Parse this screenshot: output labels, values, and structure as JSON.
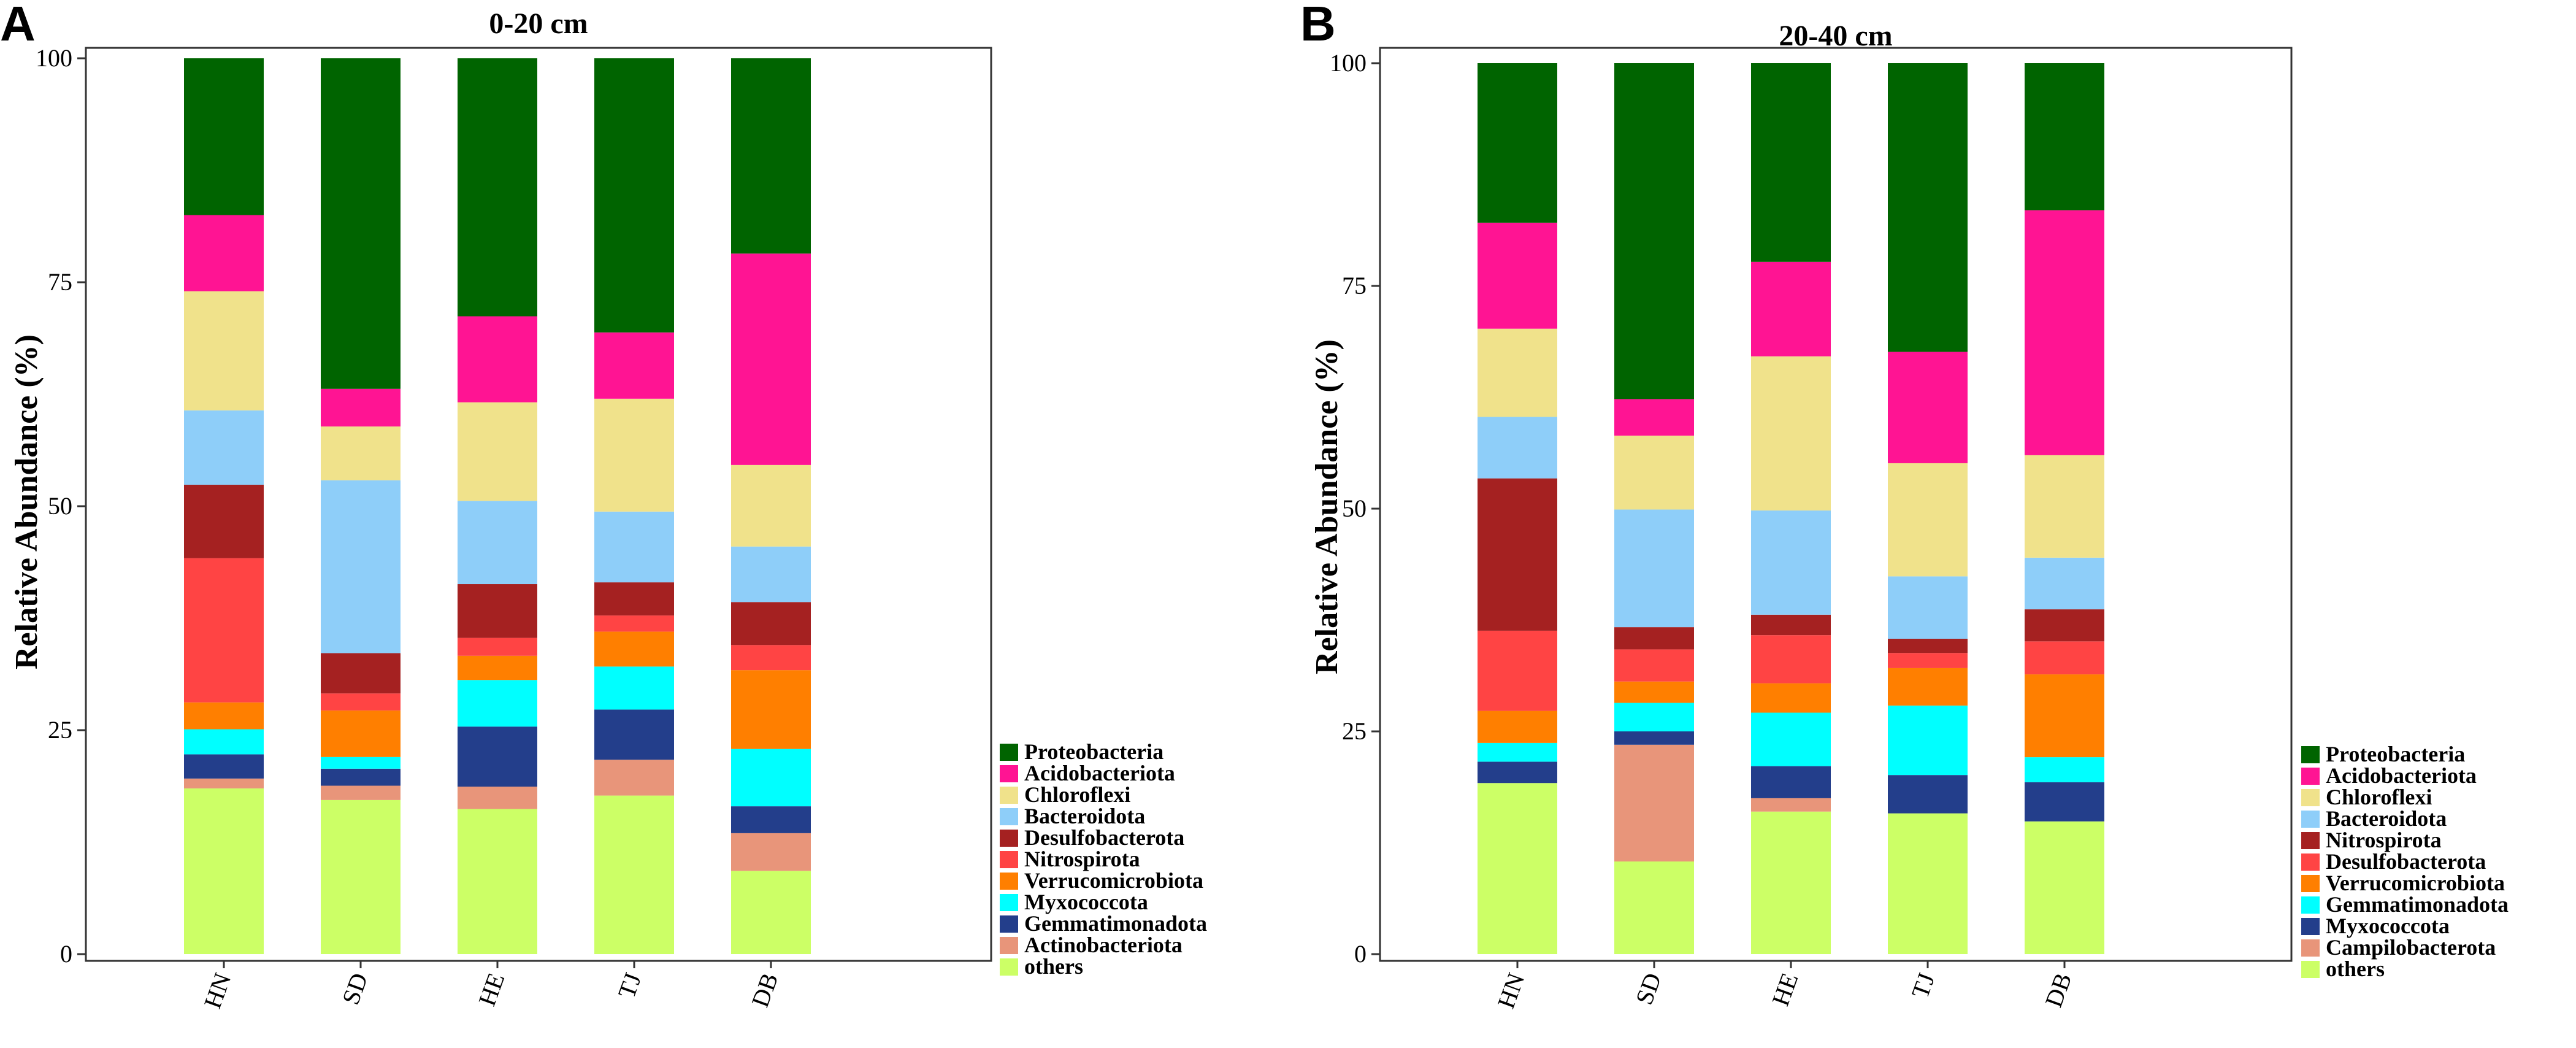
{
  "chart_data": [
    {
      "type": "bar",
      "stacked": true,
      "panel_label": "A",
      "title": "0-20 cm",
      "xlabel": "",
      "ylabel": "Relative Abundance (%)",
      "ylim": [
        0,
        100
      ],
      "yticks": [
        "0",
        "25",
        "50",
        "75",
        "100"
      ],
      "categories": [
        "HN",
        "SD",
        "HE",
        "TJ",
        "DB"
      ],
      "legend_position": "right-bottom",
      "series": [
        {
          "name": "others",
          "color": "#CCFF66",
          "values": [
            18.5,
            17.2,
            16.2,
            17.7,
            9.3
          ]
        },
        {
          "name": "Actinobacteriota",
          "color": "#E8957A",
          "values": [
            1.1,
            1.6,
            2.5,
            4.0,
            4.2
          ]
        },
        {
          "name": "Gemmatimonadota",
          "color": "#233E8B",
          "values": [
            2.7,
            1.9,
            6.7,
            5.6,
            3.0
          ]
        },
        {
          "name": "Myxococcota",
          "color": "#00FFFF",
          "values": [
            2.8,
            1.3,
            5.2,
            4.8,
            6.4
          ]
        },
        {
          "name": "Verrucomicrobiota",
          "color": "#FF7F00",
          "values": [
            3.0,
            5.2,
            2.7,
            3.9,
            8.8
          ]
        },
        {
          "name": "Nitrospirota",
          "color": "#FF4444",
          "values": [
            16.1,
            1.9,
            2.0,
            1.8,
            2.8
          ]
        },
        {
          "name": "Desulfobacterota",
          "color": "#A52121",
          "values": [
            8.2,
            4.5,
            6.0,
            3.7,
            4.8
          ]
        },
        {
          "name": "Bacteroidota",
          "color": "#8ECEF9",
          "values": [
            8.3,
            19.3,
            9.3,
            7.9,
            6.2
          ]
        },
        {
          "name": "Chloroflexi",
          "color": "#F0E28B",
          "values": [
            13.3,
            6.0,
            11.0,
            12.6,
            9.1
          ]
        },
        {
          "name": "Acidobacteriota",
          "color": "#FF1493",
          "values": [
            8.5,
            4.2,
            9.6,
            7.4,
            23.6
          ]
        },
        {
          "name": "Proteobacteria",
          "color": "#006400",
          "values": [
            17.5,
            36.9,
            28.8,
            30.6,
            21.8
          ]
        }
      ],
      "legend_order": [
        "Proteobacteria",
        "Acidobacteriota",
        "Chloroflexi",
        "Bacteroidota",
        "Desulfobacterota",
        "Nitrospirota",
        "Verrucomicrobiota",
        "Myxococcota",
        "Gemmatimonadota",
        "Actinobacteriota",
        "others"
      ]
    },
    {
      "type": "bar",
      "stacked": true,
      "panel_label": "B",
      "title": "20-40 cm",
      "xlabel": "",
      "ylabel": "Relative Abundance (%)",
      "ylim": [
        0,
        100
      ],
      "yticks": [
        "0",
        "25",
        "50",
        "75",
        "100"
      ],
      "categories": [
        "HN",
        "SD",
        "HE",
        "TJ",
        "DB"
      ],
      "legend_position": "right-bottom",
      "series": [
        {
          "name": "others",
          "color": "#CCFF66",
          "values": [
            19.2,
            10.4,
            16.0,
            15.8,
            14.9
          ]
        },
        {
          "name": "Campilobacterota",
          "color": "#E8957A",
          "values": [
            0.0,
            13.1,
            1.5,
            0.0,
            0.0
          ]
        },
        {
          "name": "Myxococcota",
          "color": "#233E8B",
          "values": [
            2.4,
            1.5,
            3.6,
            4.3,
            4.4
          ]
        },
        {
          "name": "Gemmatimonadota",
          "color": "#00FFFF",
          "values": [
            2.1,
            3.2,
            6.0,
            7.8,
            2.8
          ]
        },
        {
          "name": "Verrucomicrobiota",
          "color": "#FF7F00",
          "values": [
            3.6,
            2.4,
            3.3,
            4.2,
            9.3
          ]
        },
        {
          "name": "Desulfobacterota",
          "color": "#FF4444",
          "values": [
            9.0,
            3.6,
            5.4,
            1.7,
            3.7
          ]
        },
        {
          "name": "Nitrospirota",
          "color": "#A52121",
          "values": [
            17.1,
            2.5,
            2.3,
            1.6,
            3.6
          ]
        },
        {
          "name": "Bacteroidota",
          "color": "#8ECEF9",
          "values": [
            6.9,
            13.2,
            11.7,
            7.0,
            5.8
          ]
        },
        {
          "name": "Chloroflexi",
          "color": "#F0E28B",
          "values": [
            9.9,
            8.3,
            17.3,
            12.7,
            11.5
          ]
        },
        {
          "name": "Acidobacteriota",
          "color": "#FF1493",
          "values": [
            11.9,
            4.1,
            10.6,
            12.5,
            27.5
          ]
        },
        {
          "name": "Proteobacteria",
          "color": "#006400",
          "values": [
            17.9,
            37.7,
            22.3,
            32.4,
            16.5
          ]
        }
      ],
      "legend_order": [
        "Proteobacteria",
        "Acidobacteriota",
        "Chloroflexi",
        "Bacteroidota",
        "Nitrospirota",
        "Desulfobacterota",
        "Verrucomicrobiota",
        "Gemmatimonadota",
        "Myxococcota",
        "Campilobacterota",
        "others"
      ]
    }
  ]
}
